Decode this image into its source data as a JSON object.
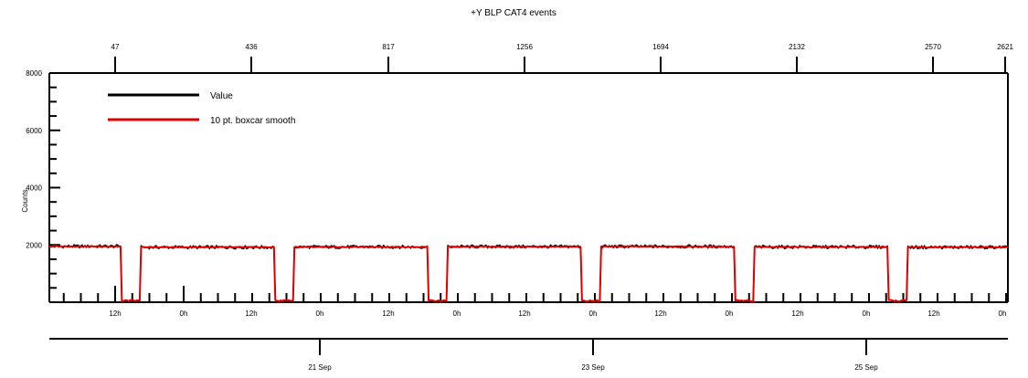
{
  "chart_data": {
    "type": "line",
    "title": "+Y BLP CAT4 events",
    "ylabel": "Counts",
    "ylim": [
      0,
      8000
    ],
    "y_ticks": [
      2000,
      4000,
      6000,
      8000
    ],
    "top_axis_ticks": [
      "47",
      "436",
      "817",
      "1256",
      "1694",
      "2132",
      "2570",
      "2621"
    ],
    "bottom_hour_ticks": [
      "12h",
      "0h",
      "12h",
      "0h",
      "12h",
      "0h",
      "12h",
      "0h",
      "12h",
      "0h",
      "12h",
      "0h",
      "12h",
      "0h"
    ],
    "date_ticks": [
      "21 Sep",
      "23 Sep",
      "25 Sep"
    ],
    "legend_position": "top-left",
    "series": [
      {
        "name": "Value",
        "color": "#000000",
        "segments": [
          {
            "start": 0.0,
            "end": 0.075,
            "level": 1950
          },
          {
            "start": 0.095,
            "end": 0.235,
            "level": 1920
          },
          {
            "start": 0.255,
            "end": 0.395,
            "level": 1930
          },
          {
            "start": 0.415,
            "end": 0.555,
            "level": 1940
          },
          {
            "start": 0.575,
            "end": 0.715,
            "level": 1945
          },
          {
            "start": 0.735,
            "end": 0.875,
            "level": 1930
          },
          {
            "start": 0.895,
            "end": 1.0,
            "level": 1920
          }
        ],
        "gap_level": 50
      },
      {
        "name": "10 pt. boxcar smooth",
        "color": "#e00000",
        "segments": [
          {
            "start": 0.0,
            "end": 0.075,
            "level": 1950
          },
          {
            "start": 0.095,
            "end": 0.235,
            "level": 1920
          },
          {
            "start": 0.255,
            "end": 0.395,
            "level": 1930
          },
          {
            "start": 0.415,
            "end": 0.555,
            "level": 1940
          },
          {
            "start": 0.575,
            "end": 0.715,
            "level": 1945
          },
          {
            "start": 0.735,
            "end": 0.875,
            "level": 1930
          },
          {
            "start": 0.895,
            "end": 1.0,
            "level": 1920
          }
        ],
        "gap_level": 50
      }
    ]
  }
}
